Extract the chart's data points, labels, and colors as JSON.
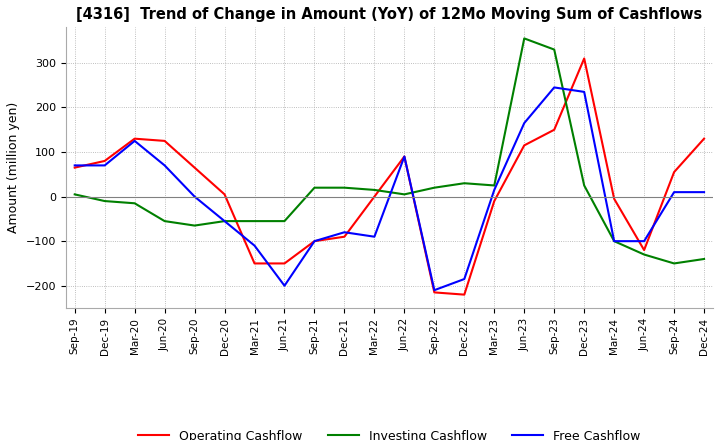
{
  "title": "[4316]  Trend of Change in Amount (YoY) of 12Mo Moving Sum of Cashflows",
  "ylabel": "Amount (million yen)",
  "xlabels": [
    "Sep-19",
    "Dec-19",
    "Mar-20",
    "Jun-20",
    "Sep-20",
    "Dec-20",
    "Mar-21",
    "Jun-21",
    "Sep-21",
    "Dec-21",
    "Mar-22",
    "Jun-22",
    "Sep-22",
    "Dec-22",
    "Mar-23",
    "Jun-23",
    "Sep-23",
    "Dec-23",
    "Mar-24",
    "Jun-24",
    "Sep-24",
    "Dec-24"
  ],
  "operating": [
    65,
    80,
    130,
    125,
    65,
    5,
    -150,
    -150,
    -100,
    -90,
    0,
    90,
    -215,
    -220,
    -10,
    115,
    150,
    310,
    -5,
    -120,
    55,
    130
  ],
  "investing": [
    5,
    -10,
    -15,
    -55,
    -65,
    -55,
    -55,
    -55,
    20,
    20,
    15,
    5,
    20,
    30,
    25,
    355,
    330,
    25,
    -100,
    -130,
    -150,
    -140
  ],
  "free": [
    70,
    70,
    125,
    70,
    0,
    -55,
    -110,
    -200,
    -100,
    -80,
    -90,
    90,
    -210,
    -185,
    15,
    165,
    245,
    235,
    -100,
    -100,
    10,
    10
  ],
  "ylim": [
    -250,
    380
  ],
  "yticks": [
    -200,
    -100,
    0,
    100,
    200,
    300
  ],
  "operating_color": "#ff0000",
  "investing_color": "#008000",
  "free_color": "#0000ff",
  "background_color": "#ffffff",
  "grid_color": "#aaaaaa"
}
